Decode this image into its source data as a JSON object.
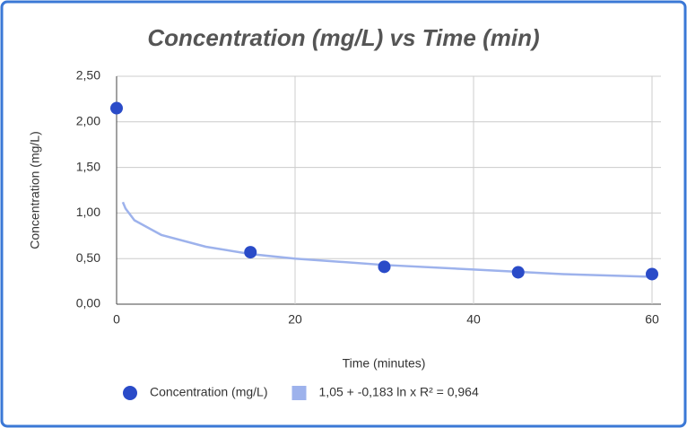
{
  "chart_data": {
    "type": "scatter",
    "title": "Concentration (mg/L) vs Time (min)",
    "x_label": "Time (minutes)",
    "y_label": "Concentration (mg/L)",
    "series": [
      {
        "name": "Concentration (mg/L)",
        "type": "scatter",
        "color": "#2a4bc8",
        "x": [
          0,
          15,
          30,
          45,
          60
        ],
        "values": [
          2.15,
          0.57,
          0.41,
          0.35,
          0.33
        ]
      },
      {
        "name": "1,05 + -0,183 ln x R² = 0,964",
        "type": "line",
        "color": "#9db2ec",
        "x": [
          0.7,
          1,
          2,
          5,
          10,
          15,
          20,
          30,
          40,
          50,
          60
        ],
        "values": [
          1.12,
          1.05,
          0.92,
          0.76,
          0.63,
          0.55,
          0.5,
          0.43,
          0.38,
          0.33,
          0.3
        ]
      }
    ],
    "xlim": [
      0,
      60
    ],
    "ylim": [
      0,
      2.5
    ],
    "xticks": [
      0,
      20,
      40,
      60
    ],
    "yticks": [
      {
        "value": 0,
        "label": "0,00"
      },
      {
        "value": 0.5,
        "label": "0,50"
      },
      {
        "value": 1,
        "label": "1,00"
      },
      {
        "value": 1.5,
        "label": "1,50"
      },
      {
        "value": 2,
        "label": "2,00"
      },
      {
        "value": 2.5,
        "label": "2,50"
      }
    ],
    "grid": true
  }
}
